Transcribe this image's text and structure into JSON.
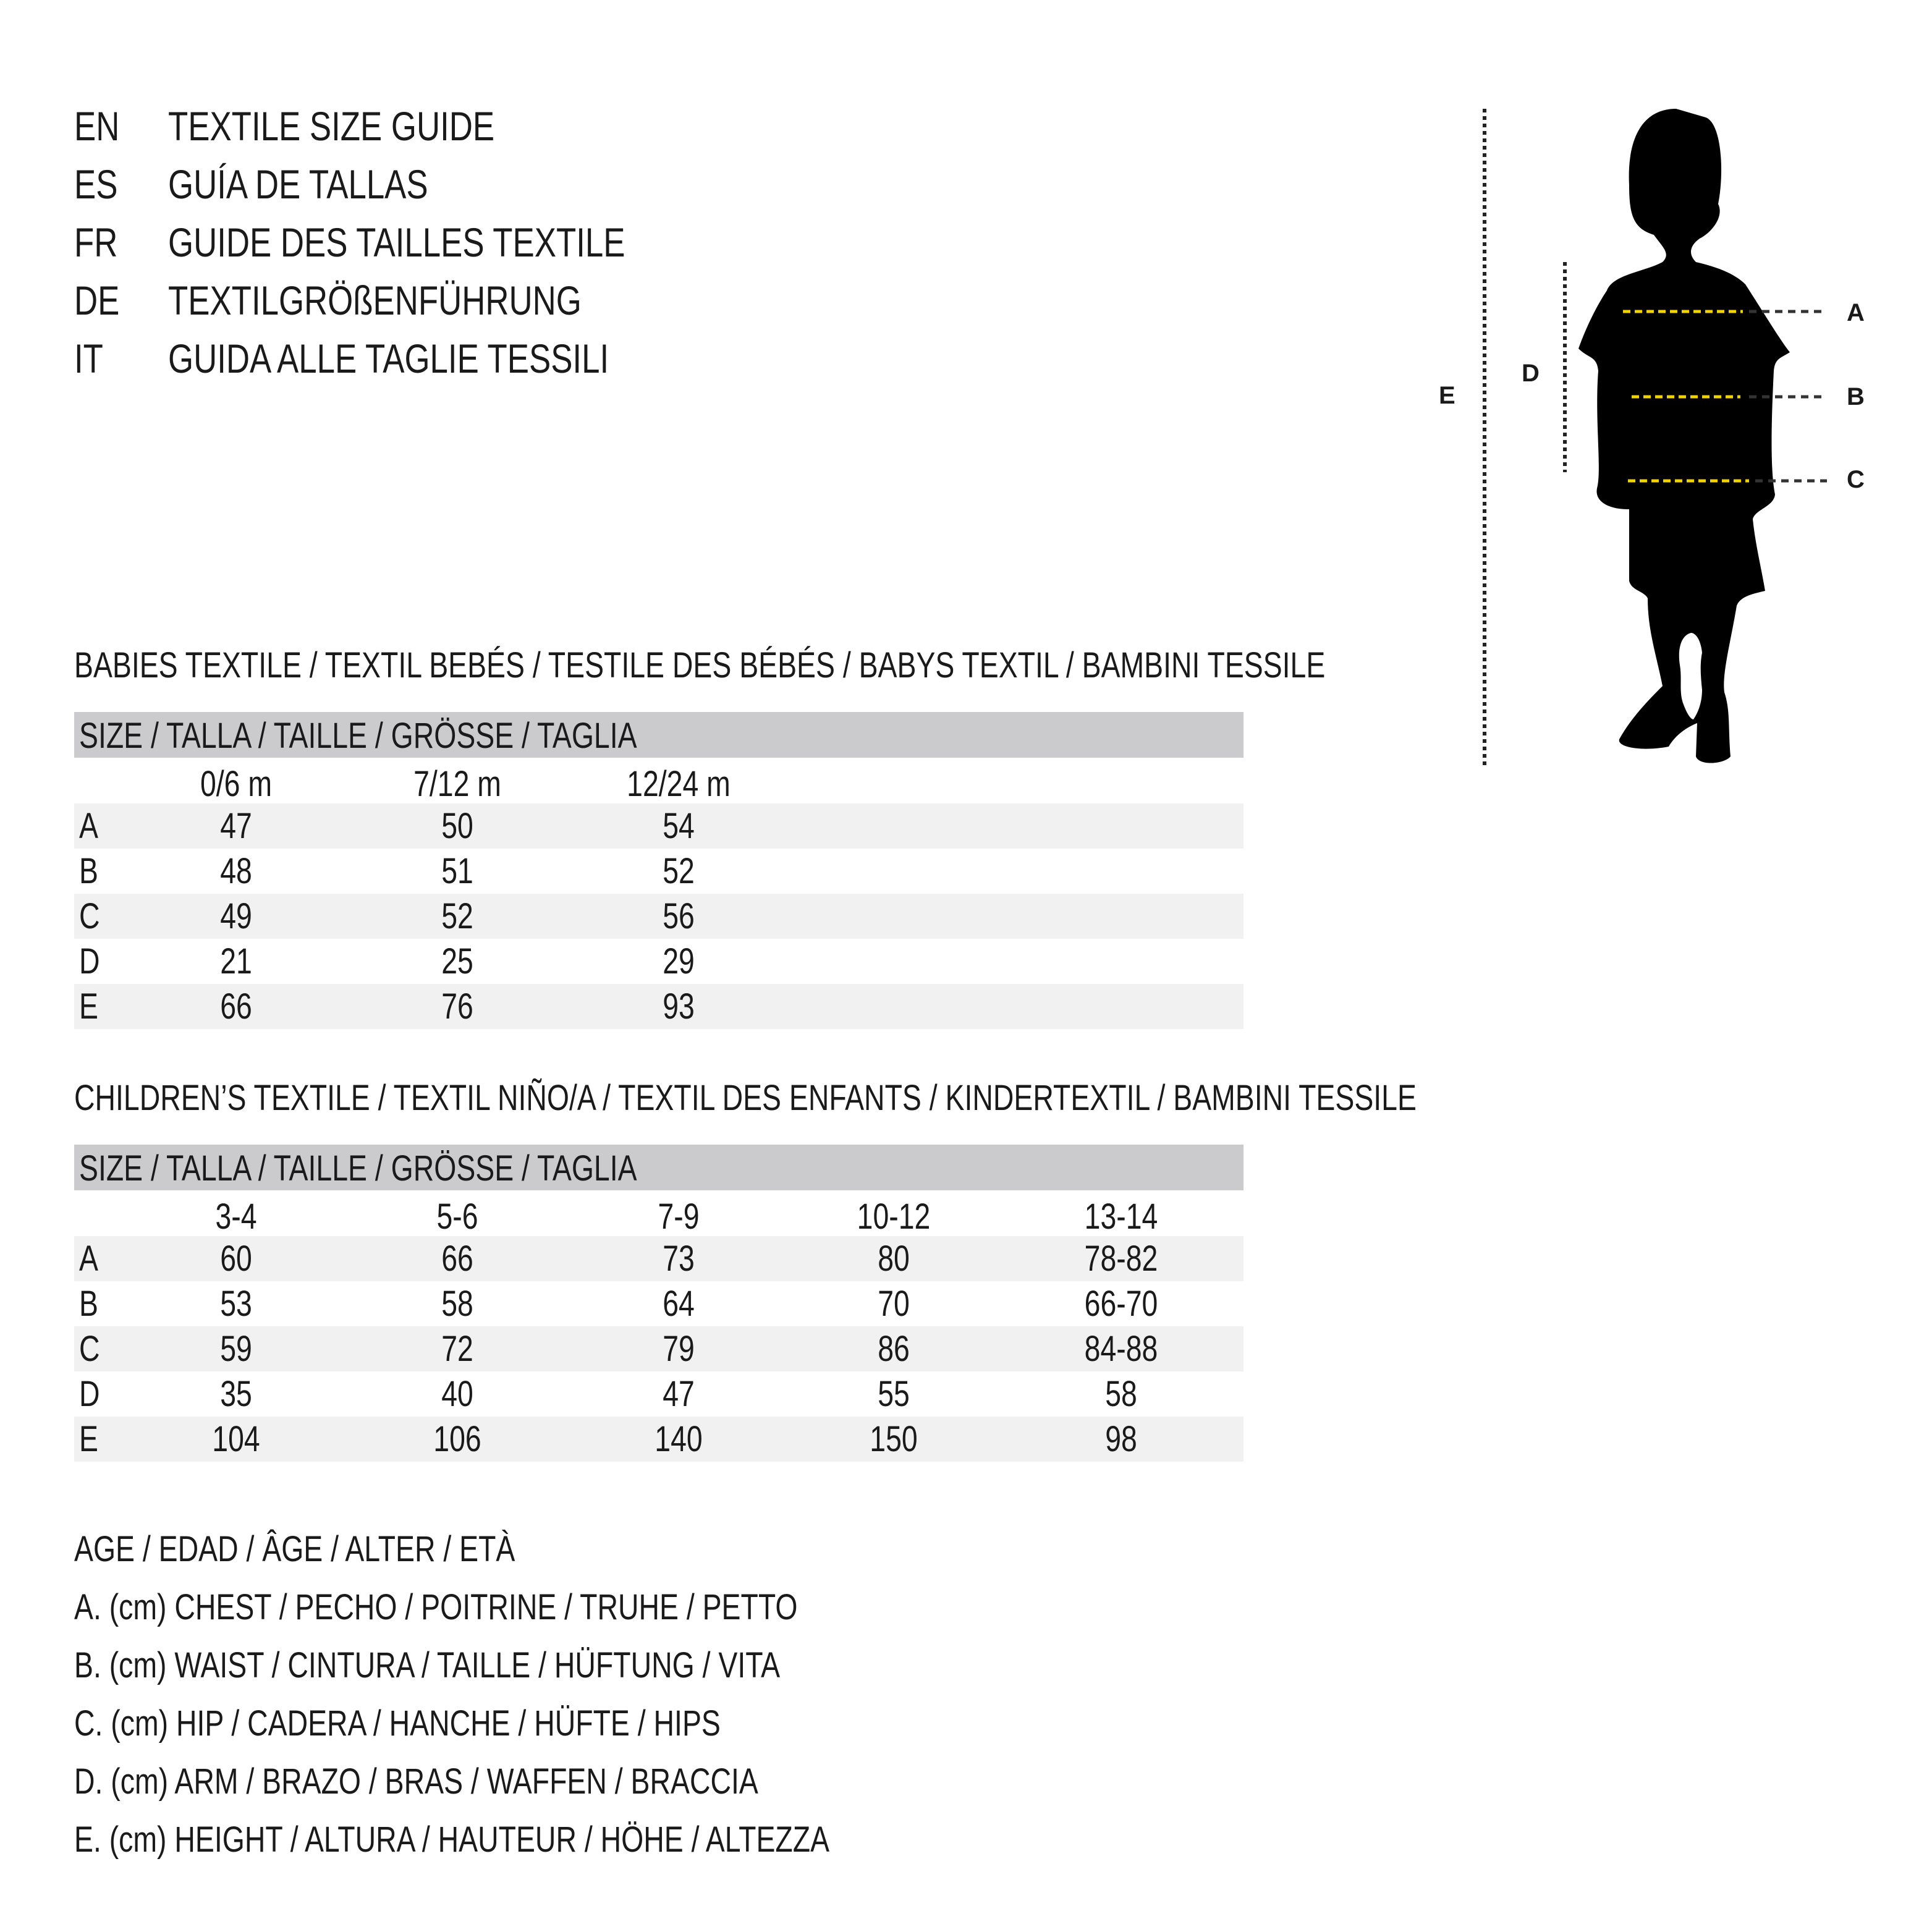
{
  "title_lines": [
    {
      "code": "EN",
      "text": "TEXTILE SIZE GUIDE"
    },
    {
      "code": "ES",
      "text": "GUÍA DE TALLAS"
    },
    {
      "code": "FR",
      "text": "GUIDE DES TAILLES TEXTILE"
    },
    {
      "code": "DE",
      "text": "TEXTILGRÖßENFÜHRUNG"
    },
    {
      "code": "IT",
      "text": "GUIDA ALLE TAGLIE TESSILI"
    }
  ],
  "figure": {
    "labels": {
      "A": "A",
      "B": "B",
      "C": "C",
      "D": "D",
      "E": "E"
    },
    "colors": {
      "measure_line": "#f2d300",
      "dotted": "#222222",
      "silhouette": "#000000"
    }
  },
  "babies": {
    "heading": "BABIES TEXTILE / TEXTIL BEBÉS / TESTILE DES BÉBÉS / BABYS TEXTIL / BAMBINI TESSILE",
    "size_header": "SIZE / TALLA / TAILLE / GRÖSSE / TAGLIA",
    "columns": [
      "0/6 m",
      "7/12 m",
      "12/24 m"
    ],
    "rows": [
      {
        "label": "A",
        "values": [
          "47",
          "50",
          "54"
        ]
      },
      {
        "label": "B",
        "values": [
          "48",
          "51",
          "52"
        ]
      },
      {
        "label": "C",
        "values": [
          "49",
          "52",
          "56"
        ]
      },
      {
        "label": "D",
        "values": [
          "21",
          "25",
          "29"
        ]
      },
      {
        "label": "E",
        "values": [
          "66",
          "76",
          "93"
        ]
      }
    ]
  },
  "children": {
    "heading": "CHILDREN’S TEXTILE / TEXTIL NIÑO/A / TEXTIL DES ENFANTS / KINDERTEXTIL / BAMBINI TESSILE",
    "size_header": "SIZE / TALLA / TAILLE / GRÖSSE / TAGLIA",
    "columns": [
      "3-4",
      "5-6",
      "7-9",
      "10-12",
      "13-14"
    ],
    "rows": [
      {
        "label": "A",
        "values": [
          "60",
          "66",
          "73",
          "80",
          "78-82"
        ]
      },
      {
        "label": "B",
        "values": [
          "53",
          "58",
          "64",
          "70",
          "66-70"
        ]
      },
      {
        "label": "C",
        "values": [
          "59",
          "72",
          "79",
          "86",
          "84-88"
        ]
      },
      {
        "label": "D",
        "values": [
          "35",
          "40",
          "47",
          "55",
          "58"
        ]
      },
      {
        "label": "E",
        "values": [
          "104",
          "106",
          "140",
          "150",
          "98"
        ]
      }
    ]
  },
  "legend": [
    "AGE / EDAD / ÂGE / ALTER / ETÀ",
    "A. (cm) CHEST / PECHO / POITRINE / TRUHE / PETTO",
    "B. (cm) WAIST / CINTURA / TAILLE / HÜFTUNG / VITA",
    "C. (cm) HIP / CADERA / HANCHE / HÜFTE / HIPS",
    "D. (cm) ARM / BRAZO / BRAS / WAFFEN / BRACCIA",
    "E. (cm) HEIGHT / ALTURA / HAUTEUR / HÖHE / ALTEZZA"
  ]
}
